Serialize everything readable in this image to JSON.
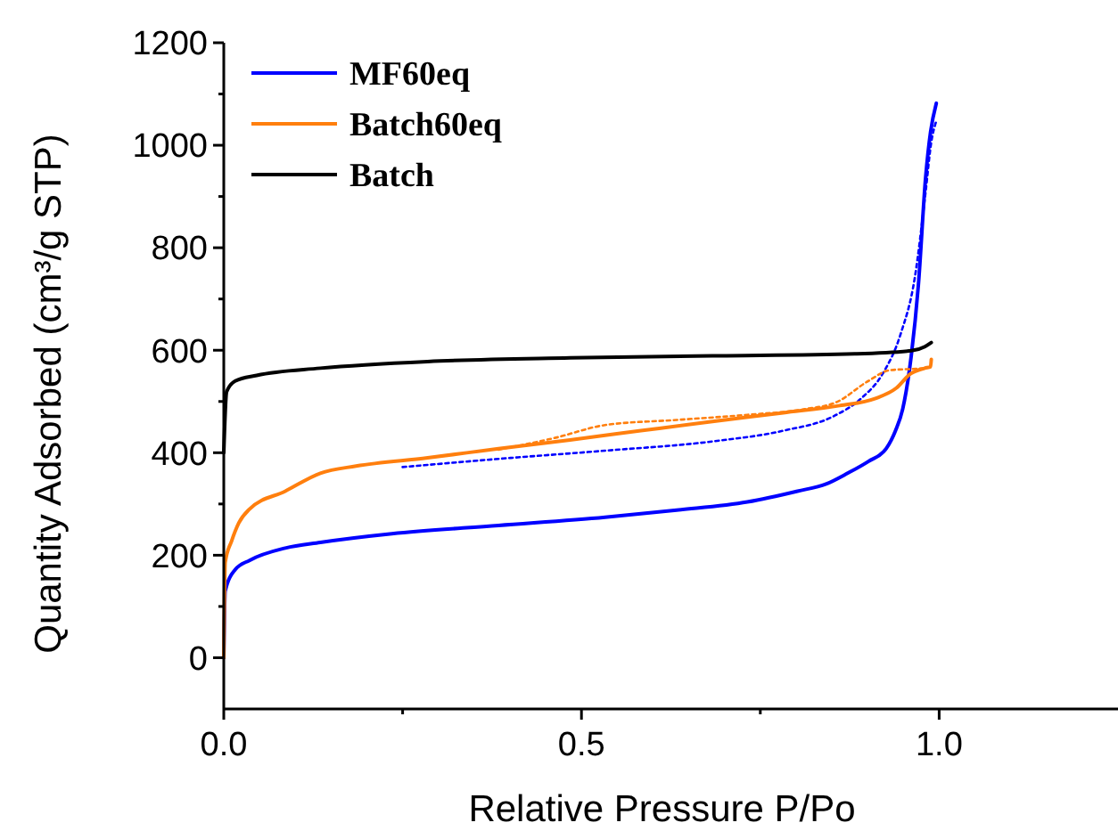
{
  "chart_data": {
    "type": "line",
    "xlabel": "Relative Pressure P/Po",
    "ylabel": "Quantity Adsorbed (cm³/g STP)",
    "xlim": [
      0,
      1.25
    ],
    "xticks": [
      {
        "value": 0,
        "label": "0.0"
      },
      {
        "value": 0.25,
        "label": null
      },
      {
        "value": 0.5,
        "label": "0.5"
      },
      {
        "value": 0.75,
        "label": null
      },
      {
        "value": 1,
        "label": "1.0"
      }
    ],
    "ylim": [
      -100,
      1200
    ],
    "yticks": [
      0,
      {
        "value": 100,
        "label": null
      },
      200,
      {
        "value": 300,
        "label": null
      },
      400,
      {
        "value": 500,
        "label": null
      },
      600,
      {
        "value": 700,
        "label": null
      },
      800,
      {
        "value": 900,
        "label": null
      },
      1000,
      {
        "value": 1100,
        "label": null
      },
      1200
    ],
    "grid": false,
    "legend": "top left",
    "marker": "none",
    "series": [
      {
        "name": "MF60eq",
        "color": "#0000ff",
        "line_style": "solid",
        "x": [
          0,
          0.002,
          0.016,
          0.036,
          0.086,
          0.135,
          0.235,
          0.384,
          0.533,
          0.633,
          0.732,
          0.802,
          0.842,
          0.872,
          0.901,
          0.926,
          0.939,
          0.949,
          0.961,
          0.971,
          0.981,
          0.988,
          0.996
        ],
        "values": [
          0,
          130,
          172,
          190,
          214,
          225,
          242,
          258,
          274,
          288,
          304,
          325,
          339,
          360,
          383,
          408,
          443,
          485,
          589,
          728,
          936,
          1026,
          1082
        ]
      },
      {
        "color": "#0000ff",
        "line_style": "dotted",
        "x": [
          0.25,
          0.384,
          0.533,
          0.683,
          0.782,
          0.852,
          0.891,
          0.921,
          0.946,
          0.966,
          0.981,
          0.989,
          0.996
        ],
        "values": [
          372,
          388,
          404,
          422,
          443,
          471,
          506,
          554,
          631,
          742,
          908,
          1006,
          1047
        ]
      },
      {
        "name": "Batch60eq",
        "color": "#ff7f0e",
        "line_style": "solid",
        "x": [
          0,
          0.002,
          0.011,
          0.021,
          0.036,
          0.086,
          0.135,
          0.185,
          0.285,
          0.384,
          0.484,
          0.583,
          0.683,
          0.782,
          0.861,
          0.911,
          0.94,
          0.96,
          0.98,
          0.988,
          0.989
        ],
        "values": [
          0,
          186,
          228,
          263,
          290,
          325,
          360,
          374,
          390,
          408,
          425,
          443,
          461,
          478,
          492,
          506,
          526,
          554,
          565,
          568,
          582
        ]
      },
      {
        "color": "#ff7f0e",
        "line_style": "dotted",
        "x": [
          0.384,
          0.463,
          0.533,
          0.633,
          0.732,
          0.812,
          0.857,
          0.901,
          0.931,
          0.98,
          0.99
        ],
        "values": [
          406,
          429,
          454,
          464,
          474,
          485,
          499,
          540,
          561,
          565,
          568
        ]
      },
      {
        "name": "Batch",
        "color": "#000000",
        "line_style": "solid",
        "x": [
          0,
          0.004,
          0.016,
          0.046,
          0.135,
          0.285,
          0.484,
          0.683,
          0.882,
          0.961,
          0.98,
          0.989
        ],
        "values": [
          400,
          519,
          540,
          551,
          565,
          578,
          585,
          589,
          593,
          599,
          607,
          615
        ]
      }
    ]
  }
}
